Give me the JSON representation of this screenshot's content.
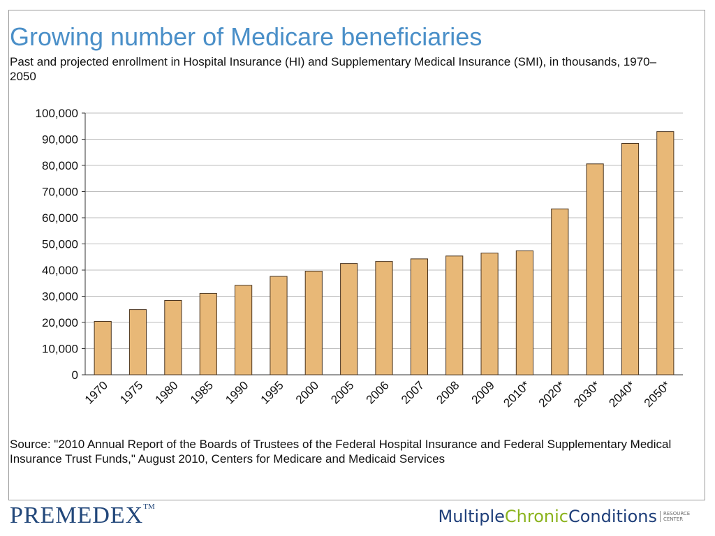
{
  "colors": {
    "title": "#4a8fc8",
    "bar_fill": "#e8b877",
    "bar_stroke": "#4a3520",
    "gridline": "#bdbdbd",
    "premedex": "#22477a",
    "mcc_navy": "#1f3f7a",
    "mcc_green": "#8bb31d"
  },
  "chart_data": {
    "type": "bar",
    "title": "Growing number of Medicare beneficiaries",
    "subtitle": "Past and projected enrollment in Hospital Insurance (HI) and Supplementary Medical Insurance (SMI), in thousands, 1970–2050",
    "categories": [
      "1970",
      "1975",
      "1980",
      "1985",
      "1990",
      "1995",
      "2000",
      "2005",
      "2006",
      "2007",
      "2008",
      "2009",
      "2010*",
      "2020*",
      "2030*",
      "2040*",
      "2050*"
    ],
    "values": [
      20400,
      24900,
      28400,
      31100,
      34200,
      37600,
      39600,
      42500,
      43300,
      44300,
      45400,
      46500,
      47400,
      63400,
      80600,
      88400,
      92900
    ],
    "ylim": [
      0,
      100000
    ],
    "yticks": [
      "0",
      "10,000",
      "20,000",
      "30,000",
      "40,000",
      "50,000",
      "60,000",
      "70,000",
      "80,000",
      "90,000",
      "100,000"
    ],
    "xlabel": "",
    "ylabel": "",
    "grid": true,
    "source": "Source: \"2010 Annual Report of the Boards of Trustees of the Federal Hospital Insurance and Federal Supplementary Medical Insurance Trust Funds,\" August 2010, Centers for Medicare and Medicaid Services"
  },
  "footer": {
    "premedex_logo": "PREMEDEX",
    "premedex_tm": "TM",
    "mcc_logo": {
      "word1": "Multiple",
      "word2": "Chronic",
      "word3": "Conditions",
      "tag_line1": "RESOURCE",
      "tag_line2": "CENTER"
    }
  }
}
